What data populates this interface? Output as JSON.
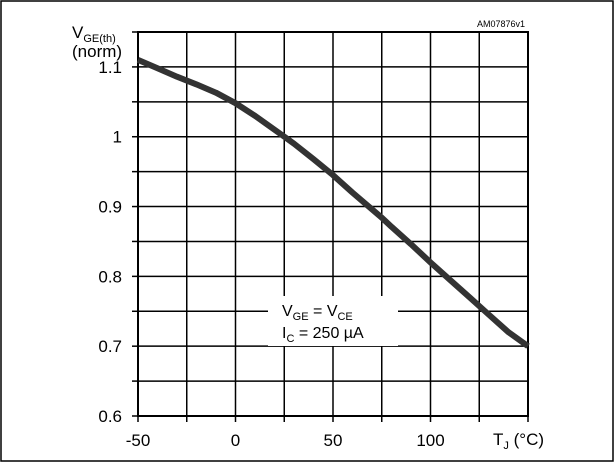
{
  "chart_data": {
    "type": "line",
    "figure_id": "AM07876v1",
    "ylabel": {
      "main": "V",
      "sub": "GE(th)",
      "unit": "(norm)"
    },
    "xlabel": {
      "main": "T",
      "sub": "J",
      "unit": " (°C)"
    },
    "xlim": [
      -50,
      150
    ],
    "ylim": [
      0.6,
      1.15
    ],
    "x_ticks": [
      -50,
      0,
      50,
      100
    ],
    "x_tick_labels": [
      "-50",
      "0",
      "50",
      "100"
    ],
    "y_ticks": [
      0.6,
      0.7,
      0.8,
      0.9,
      1.0,
      1.1
    ],
    "y_tick_labels": [
      "0.6",
      "0.7",
      "0.8",
      "0.9",
      "1",
      "1.1"
    ],
    "grid": true,
    "annotation": {
      "line1": {
        "a": "V",
        "a_sub": "GE",
        "eq": " = ",
        "b": "V",
        "b_sub": "CE"
      },
      "line2": {
        "a": "I",
        "a_sub": "C",
        "rest": " = 250 µA"
      }
    },
    "series": [
      {
        "x": [
          -50,
          -40,
          -30,
          -20,
          -10,
          0,
          10,
          20,
          25,
          30,
          40,
          50,
          60,
          70,
          75,
          80,
          90,
          100,
          110,
          120,
          130,
          140,
          150
        ],
        "y": [
          1.11,
          1.098,
          1.086,
          1.075,
          1.063,
          1.048,
          1.03,
          1.01,
          1.0,
          0.99,
          0.968,
          0.945,
          0.92,
          0.896,
          0.884,
          0.871,
          0.846,
          0.82,
          0.795,
          0.77,
          0.745,
          0.72,
          0.7
        ],
        "color": "#333333"
      }
    ]
  }
}
